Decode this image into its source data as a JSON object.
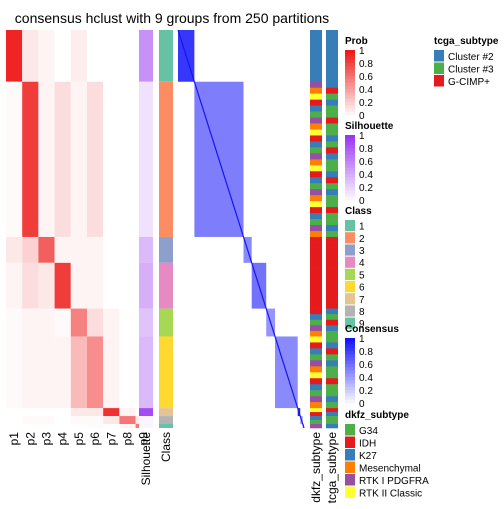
{
  "chart_data": {
    "type": "heatmap",
    "title": "consensus hclust with 9 groups from 250 partitions",
    "prob_columns": [
      "p1",
      "p2",
      "p3",
      "p4",
      "p5",
      "p6",
      "p7",
      "p8",
      "p9"
    ],
    "annotation_columns": [
      "Silhouette",
      "Class"
    ],
    "side_annotation_columns": [
      "dkfz_subtype",
      "tcga_subtype"
    ],
    "groups": [
      {
        "class": 1,
        "rows": 26,
        "prob": [
          0.95,
          0.1,
          0.05,
          0,
          0.08,
          0,
          0,
          0,
          0
        ],
        "silhouette": 0.55,
        "consensus": 0.85
      },
      {
        "class": 2,
        "rows": 78,
        "prob": [
          0.02,
          0.85,
          0.05,
          0.15,
          0.05,
          0.15,
          0,
          0,
          0
        ],
        "silhouette": 0.15,
        "consensus": 0.55
      },
      {
        "class": 3,
        "rows": 13,
        "prob": [
          0.1,
          0.2,
          0.7,
          0.05,
          0.05,
          0.05,
          0,
          0,
          0
        ],
        "silhouette": 0.35,
        "consensus": 0.5
      },
      {
        "class": 4,
        "rows": 23,
        "prob": [
          0.05,
          0.15,
          0.1,
          0.85,
          0.05,
          0.05,
          0,
          0,
          0
        ],
        "silhouette": 0.4,
        "consensus": 0.6
      },
      {
        "class": 5,
        "rows": 14,
        "prob": [
          0.02,
          0.05,
          0.05,
          0.02,
          0.55,
          0.15,
          0.05,
          0,
          0
        ],
        "silhouette": 0.3,
        "consensus": 0.45
      },
      {
        "class": 6,
        "rows": 36,
        "prob": [
          0.02,
          0.05,
          0.05,
          0.05,
          0.3,
          0.5,
          0.05,
          0,
          0
        ],
        "silhouette": 0.35,
        "consensus": 0.5
      },
      {
        "class": 7,
        "rows": 4,
        "prob": [
          0,
          0,
          0,
          0,
          0.1,
          0.1,
          0.9,
          0.05,
          0
        ],
        "silhouette": 0.9,
        "consensus": 0.95
      },
      {
        "class": 8,
        "rows": 4,
        "prob": [
          0,
          0.02,
          0.02,
          0,
          0.02,
          0.02,
          0.1,
          0.6,
          0.1
        ],
        "silhouette": 0.05,
        "consensus": 0.4
      },
      {
        "class": 9,
        "rows": 2,
        "prob": [
          0,
          0,
          0,
          0,
          0,
          0.02,
          0,
          0.05,
          0.6
        ],
        "silhouette": 0.05,
        "consensus": 0.4
      }
    ],
    "legends": {
      "prob": {
        "title": "Prob",
        "ticks": [
          "1",
          "0.8",
          "0.6",
          "0.4",
          "0.2",
          "0"
        ]
      },
      "silhouette": {
        "title": "Silhouette",
        "ticks": [
          "1",
          "0.8",
          "0.6",
          "0.4",
          "0.2",
          "0"
        ]
      },
      "class": {
        "title": "Class",
        "items": [
          {
            "label": "1",
            "color": "#66C2A5"
          },
          {
            "label": "2",
            "color": "#FC8D62"
          },
          {
            "label": "3",
            "color": "#8DA0CB"
          },
          {
            "label": "4",
            "color": "#E78AC3"
          },
          {
            "label": "5",
            "color": "#A6D854"
          },
          {
            "label": "6",
            "color": "#FFD92F"
          },
          {
            "label": "7",
            "color": "#E5C494"
          },
          {
            "label": "8",
            "color": "#B3B3B3"
          },
          {
            "label": "9",
            "color": "#66C2A5"
          }
        ]
      },
      "consensus": {
        "title": "Consensus",
        "ticks": [
          "1",
          "0.8",
          "0.6",
          "0.4",
          "0.2",
          "0"
        ]
      },
      "tcga_subtype": {
        "title": "tcga_subtype",
        "items": [
          {
            "label": "Cluster #2",
            "color": "#377EB8"
          },
          {
            "label": "Cluster #3",
            "color": "#4DAF4A"
          },
          {
            "label": "G-CIMP+",
            "color": "#E41A1C"
          }
        ]
      },
      "dkfz_subtype": {
        "title": "dkfz_subtype",
        "items": [
          {
            "label": "G34",
            "color": "#4DAF4A"
          },
          {
            "label": "IDH",
            "color": "#E41A1C"
          },
          {
            "label": "K27",
            "color": "#377EB8"
          },
          {
            "label": "Mesenchymal",
            "color": "#FF7F00"
          },
          {
            "label": "RTK I PDGFRA",
            "color": "#984EA3"
          },
          {
            "label": "RTK II Classic",
            "color": "#FFFF33"
          }
        ]
      }
    }
  }
}
